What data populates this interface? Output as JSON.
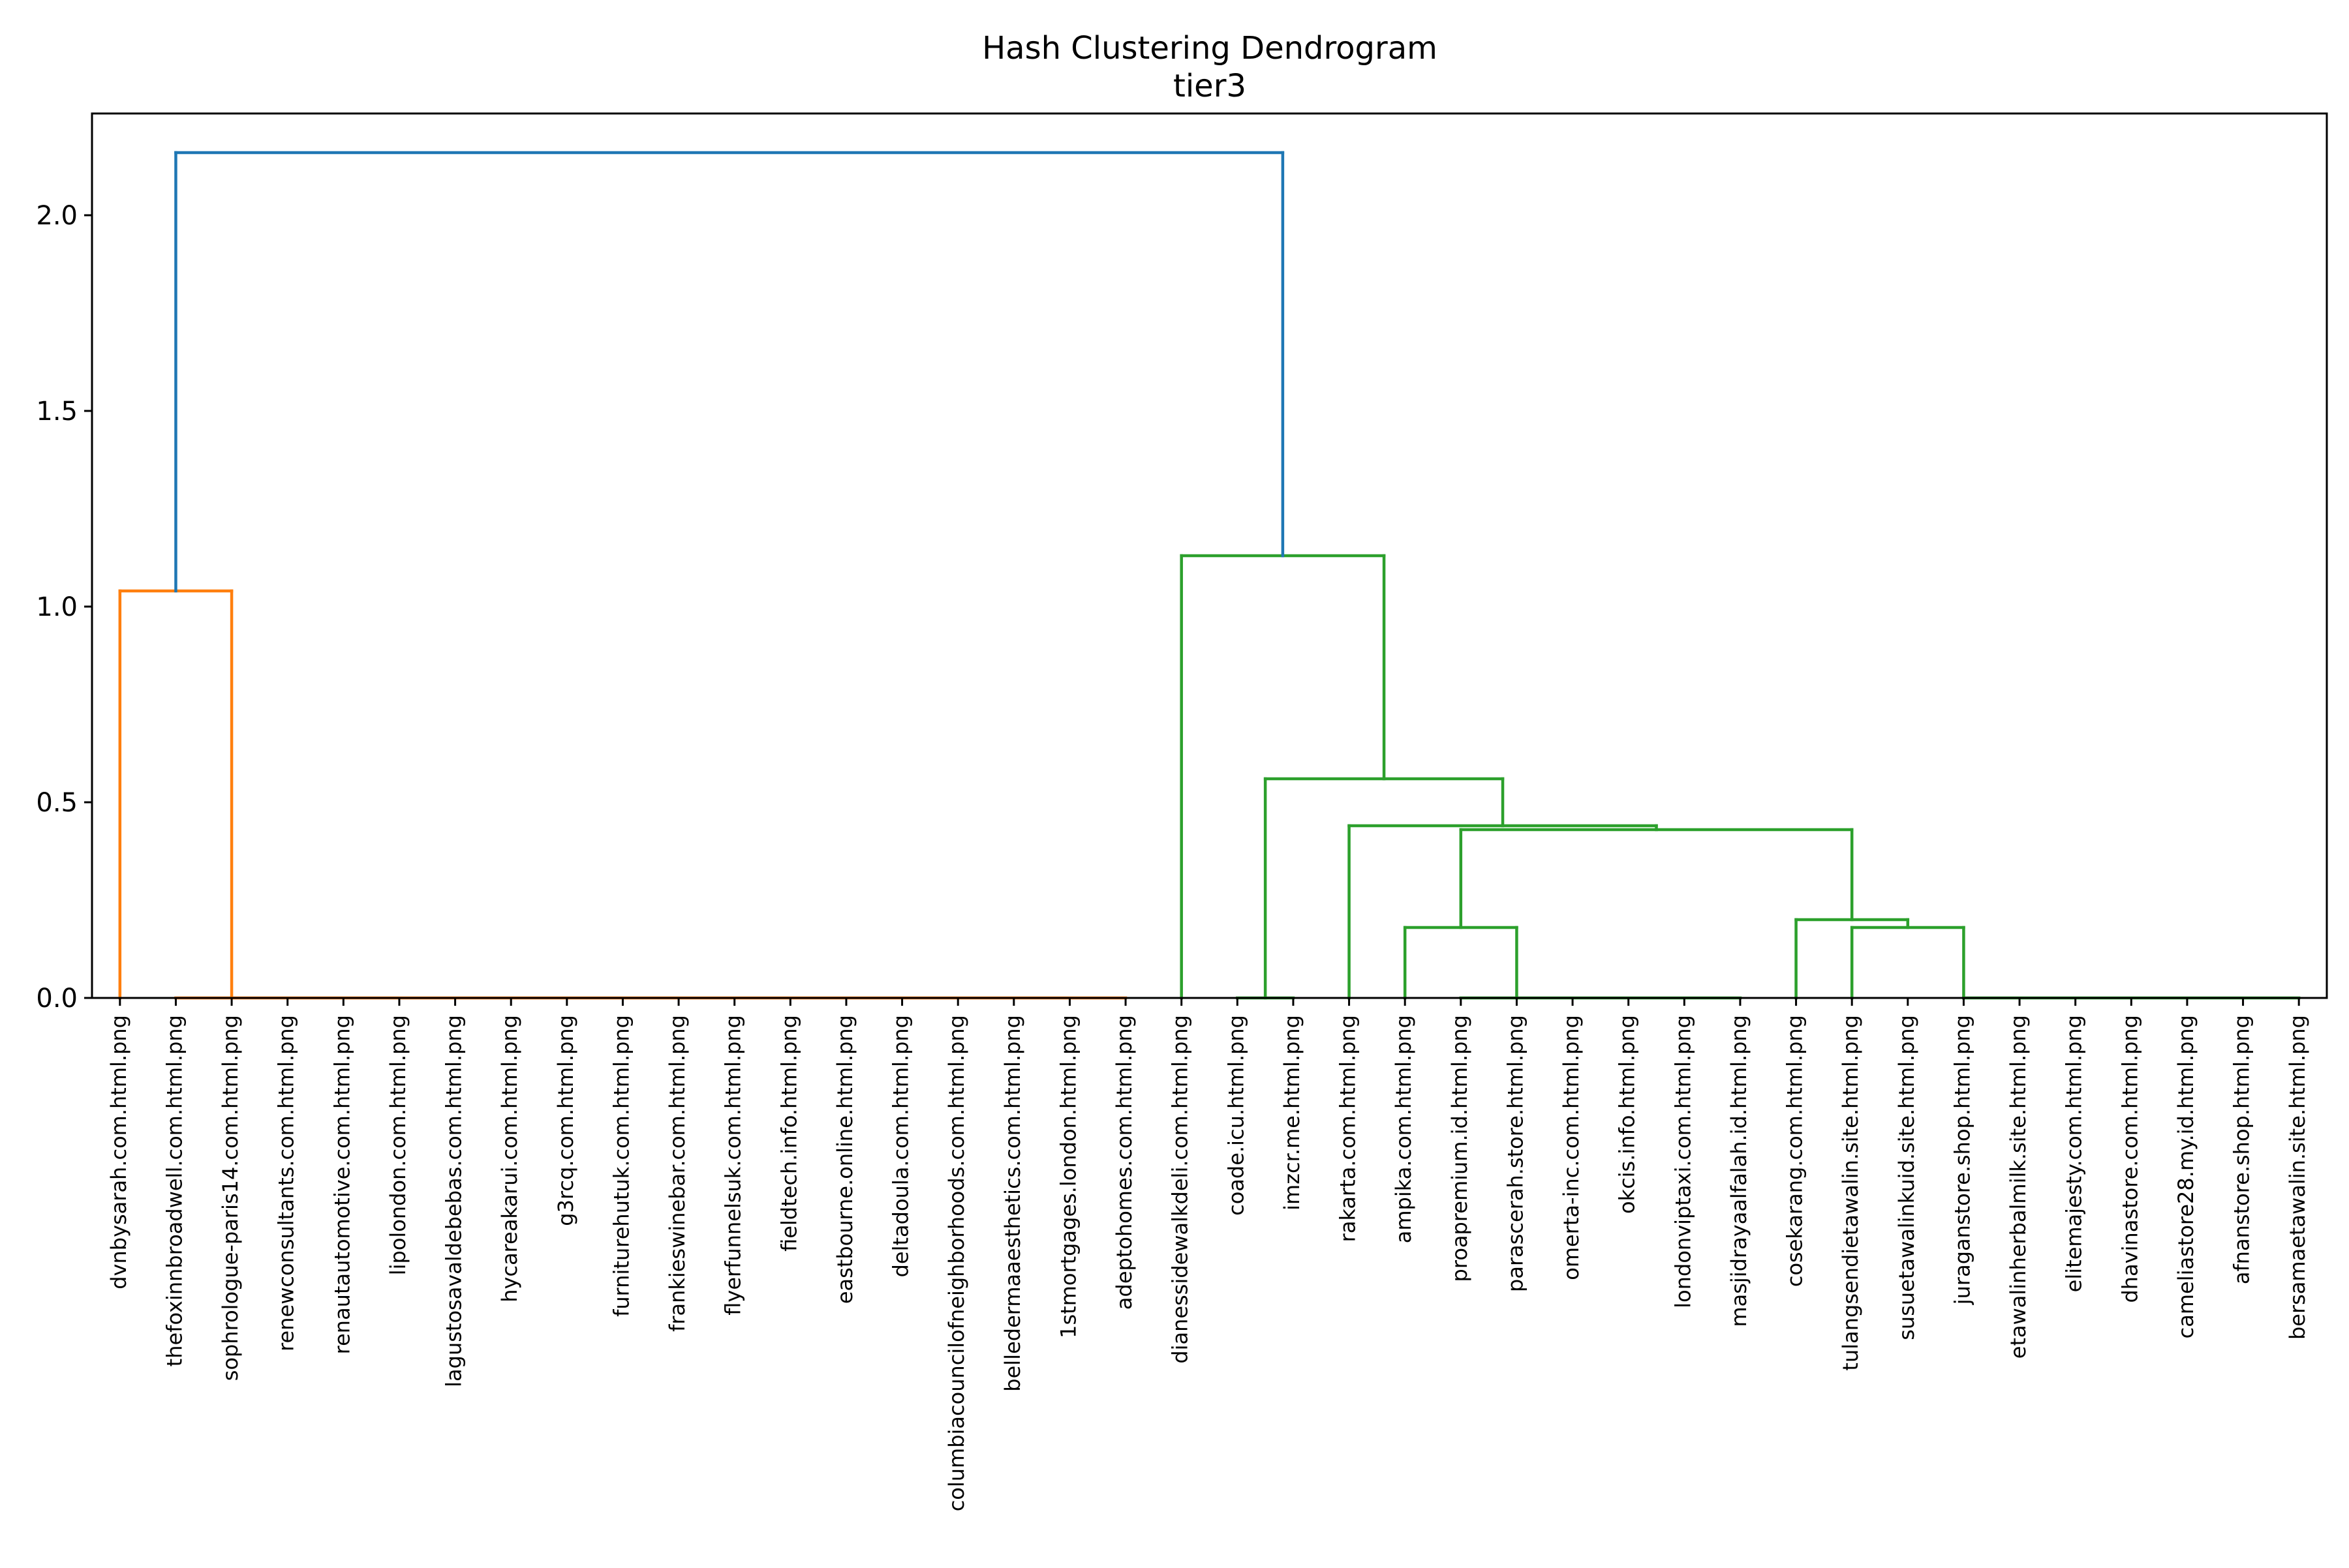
{
  "chart_data": {
    "type": "dendrogram",
    "title": "Hash Clustering Dendrogram",
    "subtitle": "tier3",
    "xlabel": "",
    "ylabel": "",
    "ylim": [
      0,
      2.26
    ],
    "yticks": [
      0.0,
      0.5,
      1.0,
      1.5,
      2.0
    ],
    "ytick_labels": [
      "0.0",
      "0.5",
      "1.0",
      "1.5",
      "2.0"
    ],
    "grid": false,
    "colors": {
      "root": "#1f77b4",
      "cluster_a": "#ff7f0e",
      "cluster_b": "#2ca02c"
    },
    "leaves": [
      "dvnbysarah.com.html.png",
      "thefoxinnbroadwell.com.html.png",
      "sophrologue-paris14.com.html.png",
      "renewconsultants.com.html.png",
      "renautautomotive.com.html.png",
      "lipolondon.com.html.png",
      "lagustosavaldebebas.com.html.png",
      "hycareakarui.com.html.png",
      "g3rcq.com.html.png",
      "furniturehutuk.com.html.png",
      "frankieswinebar.com.html.png",
      "flyerfunnelsuk.com.html.png",
      "fieldtech.info.html.png",
      "eastbourne.online.html.png",
      "deltadoula.com.html.png",
      "columbiacouncilofneighborhoods.com.html.png",
      "belledermaaesthetics.com.html.png",
      "1stmortgages.london.html.png",
      "adeptohomes.com.html.png",
      "dianessidewalkdeli.com.html.png",
      "coade.icu.html.png",
      "imzcr.me.html.png",
      "rakarta.com.html.png",
      "ampika.com.html.png",
      "proapremium.id.html.png",
      "parascerah.store.html.png",
      "omerta-inc.com.html.png",
      "okcis.info.html.png",
      "londonviptaxi.com.html.png",
      "masjidrayaalfalah.id.html.png",
      "cosekarang.com.html.png",
      "tulangsendietawalin.site.html.png",
      "susuetawalinkuid.site.html.png",
      "juraganstore.shop.html.png",
      "etawalinherbalmilk.site.html.png",
      "elitemajesty.com.html.png",
      "dhavinastore.com.html.png",
      "cameliastore28.my.id.html.png",
      "afnanstore.shop.html.png",
      "bersamaetawalin.site.html.png"
    ],
    "merges": [
      {
        "xs": [
          1,
          2,
          3,
          4,
          5,
          6,
          7,
          8,
          9,
          10,
          11,
          12,
          13,
          14,
          15,
          16,
          17,
          18
        ],
        "y": 0.0,
        "color": "cluster_a"
      },
      {
        "xs": [
          20,
          21
        ],
        "y": 0.0,
        "color": "cluster_b"
      },
      {
        "xs": [
          24,
          25,
          26,
          27,
          28,
          29
        ],
        "y": 0.0,
        "color": "cluster_b"
      },
      {
        "xs": [
          33,
          34,
          35,
          36,
          37,
          38,
          39
        ],
        "y": 0.0,
        "color": "cluster_b"
      },
      {
        "xs": [
          0,
          2
        ],
        "y": 1.04,
        "color": "cluster_a"
      },
      {
        "xs": [
          23,
          25
        ],
        "y": 0.18,
        "color": "cluster_b"
      },
      {
        "xs": [
          31,
          33
        ],
        "y": 0.18,
        "color": "cluster_b"
      },
      {
        "xs": [
          30,
          32
        ],
        "y": 0.2,
        "color": "cluster_b"
      },
      {
        "xs": [
          24,
          31
        ],
        "y": 0.43,
        "color": "cluster_b"
      },
      {
        "xs": [
          22,
          27.5
        ],
        "y": 0.44,
        "color": "cluster_b"
      },
      {
        "xs": [
          20.5,
          24.75
        ],
        "y": 0.56,
        "color": "cluster_b"
      },
      {
        "xs": [
          19,
          22.625
        ],
        "y": 1.13,
        "color": "cluster_b"
      },
      {
        "xs": [
          1,
          20.8125
        ],
        "y": 2.16,
        "color": "root"
      }
    ],
    "stems": [
      {
        "x": 0,
        "y0": 0.0,
        "y1": 1.04,
        "color": "cluster_a"
      },
      {
        "x": 2,
        "y0": 0.0,
        "y1": 1.04,
        "color": "cluster_a"
      },
      {
        "x": 23,
        "y0": 0.0,
        "y1": 0.18,
        "color": "cluster_b"
      },
      {
        "x": 25,
        "y0": 0.0,
        "y1": 0.18,
        "color": "cluster_b"
      },
      {
        "x": 31,
        "y0": 0.0,
        "y1": 0.18,
        "color": "cluster_b"
      },
      {
        "x": 33,
        "y0": 0.0,
        "y1": 0.18,
        "color": "cluster_b"
      },
      {
        "x": 30,
        "y0": 0.0,
        "y1": 0.2,
        "color": "cluster_b"
      },
      {
        "x": 32,
        "y0": 0.18,
        "y1": 0.2,
        "color": "cluster_b"
      },
      {
        "x": 24,
        "y0": 0.18,
        "y1": 0.43,
        "color": "cluster_b"
      },
      {
        "x": 31,
        "y0": 0.2,
        "y1": 0.43,
        "color": "cluster_b"
      },
      {
        "x": 22,
        "y0": 0.0,
        "y1": 0.44,
        "color": "cluster_b"
      },
      {
        "x": 27.5,
        "y0": 0.43,
        "y1": 0.44,
        "color": "cluster_b"
      },
      {
        "x": 20.5,
        "y0": 0.0,
        "y1": 0.56,
        "color": "cluster_b"
      },
      {
        "x": 24.75,
        "y0": 0.44,
        "y1": 0.56,
        "color": "cluster_b"
      },
      {
        "x": 19,
        "y0": 0.0,
        "y1": 1.13,
        "color": "cluster_b"
      },
      {
        "x": 22.625,
        "y0": 0.56,
        "y1": 1.13,
        "color": "cluster_b"
      },
      {
        "x": 1,
        "y0": 1.04,
        "y1": 2.16,
        "color": "root"
      },
      {
        "x": 20.8125,
        "y0": 1.13,
        "y1": 2.16,
        "color": "root"
      }
    ]
  }
}
